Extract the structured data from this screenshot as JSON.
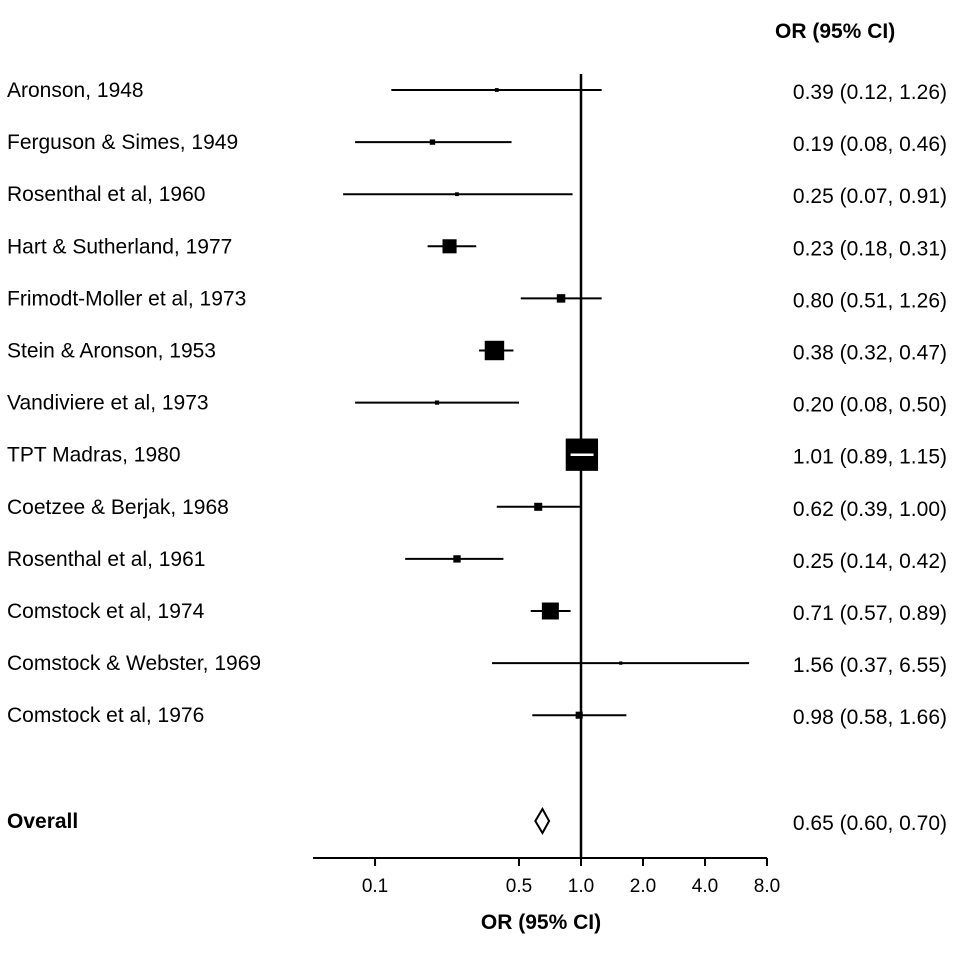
{
  "chart_data": {
    "type": "forest",
    "estimate_header": "OR (95% CI)",
    "xlabel": "OR (95% CI)",
    "x_scale": "log",
    "xlim": [
      0.05,
      8.0
    ],
    "x_ticks": [
      {
        "value": 0.1,
        "label": "0.1"
      },
      {
        "value": 0.5,
        "label": "0.5"
      },
      {
        "value": 1.0,
        "label": "1.0"
      },
      {
        "value": 2.0,
        "label": "2.0"
      },
      {
        "value": 4.0,
        "label": "4.0"
      },
      {
        "value": 8.0,
        "label": "8.0"
      }
    ],
    "reference_line": 1.0,
    "grid": false,
    "studies": [
      {
        "label": "Aronson, 1948",
        "or": 0.39,
        "lower": 0.12,
        "upper": 1.26,
        "weight": 0.4,
        "text": "0.39 (0.12, 1.26)"
      },
      {
        "label": "Ferguson & Simes, 1949",
        "or": 0.19,
        "lower": 0.08,
        "upper": 0.46,
        "weight": 0.8,
        "text": "0.19 (0.08, 0.46)"
      },
      {
        "label": "Rosenthal et al, 1960",
        "or": 0.25,
        "lower": 0.07,
        "upper": 0.91,
        "weight": 0.4,
        "text": "0.25 (0.07, 0.91)"
      },
      {
        "label": "Hart & Sutherland, 1977",
        "or": 0.23,
        "lower": 0.18,
        "upper": 0.31,
        "weight": 5.5,
        "text": "0.23 (0.18, 0.31)"
      },
      {
        "label": "Frimodt-Moller et al, 1973",
        "or": 0.8,
        "lower": 0.51,
        "upper": 1.26,
        "weight": 2.0,
        "text": "0.80 (0.51, 1.26)"
      },
      {
        "label": "Stein & Aronson, 1953",
        "or": 0.38,
        "lower": 0.32,
        "upper": 0.47,
        "weight": 10.5,
        "text": "0.38 (0.32, 0.47)"
      },
      {
        "label": "Vandiviere et al, 1973",
        "or": 0.2,
        "lower": 0.08,
        "upper": 0.5,
        "weight": 0.5,
        "text": "0.20 (0.08, 0.50)"
      },
      {
        "label": "TPT Madras, 1980",
        "or": 1.01,
        "lower": 0.89,
        "upper": 1.15,
        "weight": 29.0,
        "text": "1.01 (0.89, 1.15)"
      },
      {
        "label": "Coetzee & Berjak, 1968",
        "or": 0.62,
        "lower": 0.39,
        "upper": 1.0,
        "weight": 1.8,
        "text": "0.62 (0.39, 1.00)"
      },
      {
        "label": "Rosenthal et al, 1961",
        "or": 0.25,
        "lower": 0.14,
        "upper": 0.42,
        "weight": 1.5,
        "text": "0.25 (0.14, 0.42)"
      },
      {
        "label": "Comstock et al, 1974",
        "or": 0.71,
        "lower": 0.57,
        "upper": 0.89,
        "weight": 8.0,
        "text": "0.71 (0.57, 0.89)"
      },
      {
        "label": "Comstock & Webster, 1969",
        "or": 1.56,
        "lower": 0.37,
        "upper": 6.55,
        "weight": 0.3,
        "text": "1.56 (0.37, 6.55)"
      },
      {
        "label": "Comstock et al, 1976",
        "or": 0.98,
        "lower": 0.58,
        "upper": 1.66,
        "weight": 1.4,
        "text": "0.98 (0.58, 1.66)"
      }
    ],
    "overall": {
      "label": "Overall",
      "or": 0.65,
      "lower": 0.6,
      "upper": 0.7,
      "text": "0.65 (0.60, 0.70)"
    }
  }
}
